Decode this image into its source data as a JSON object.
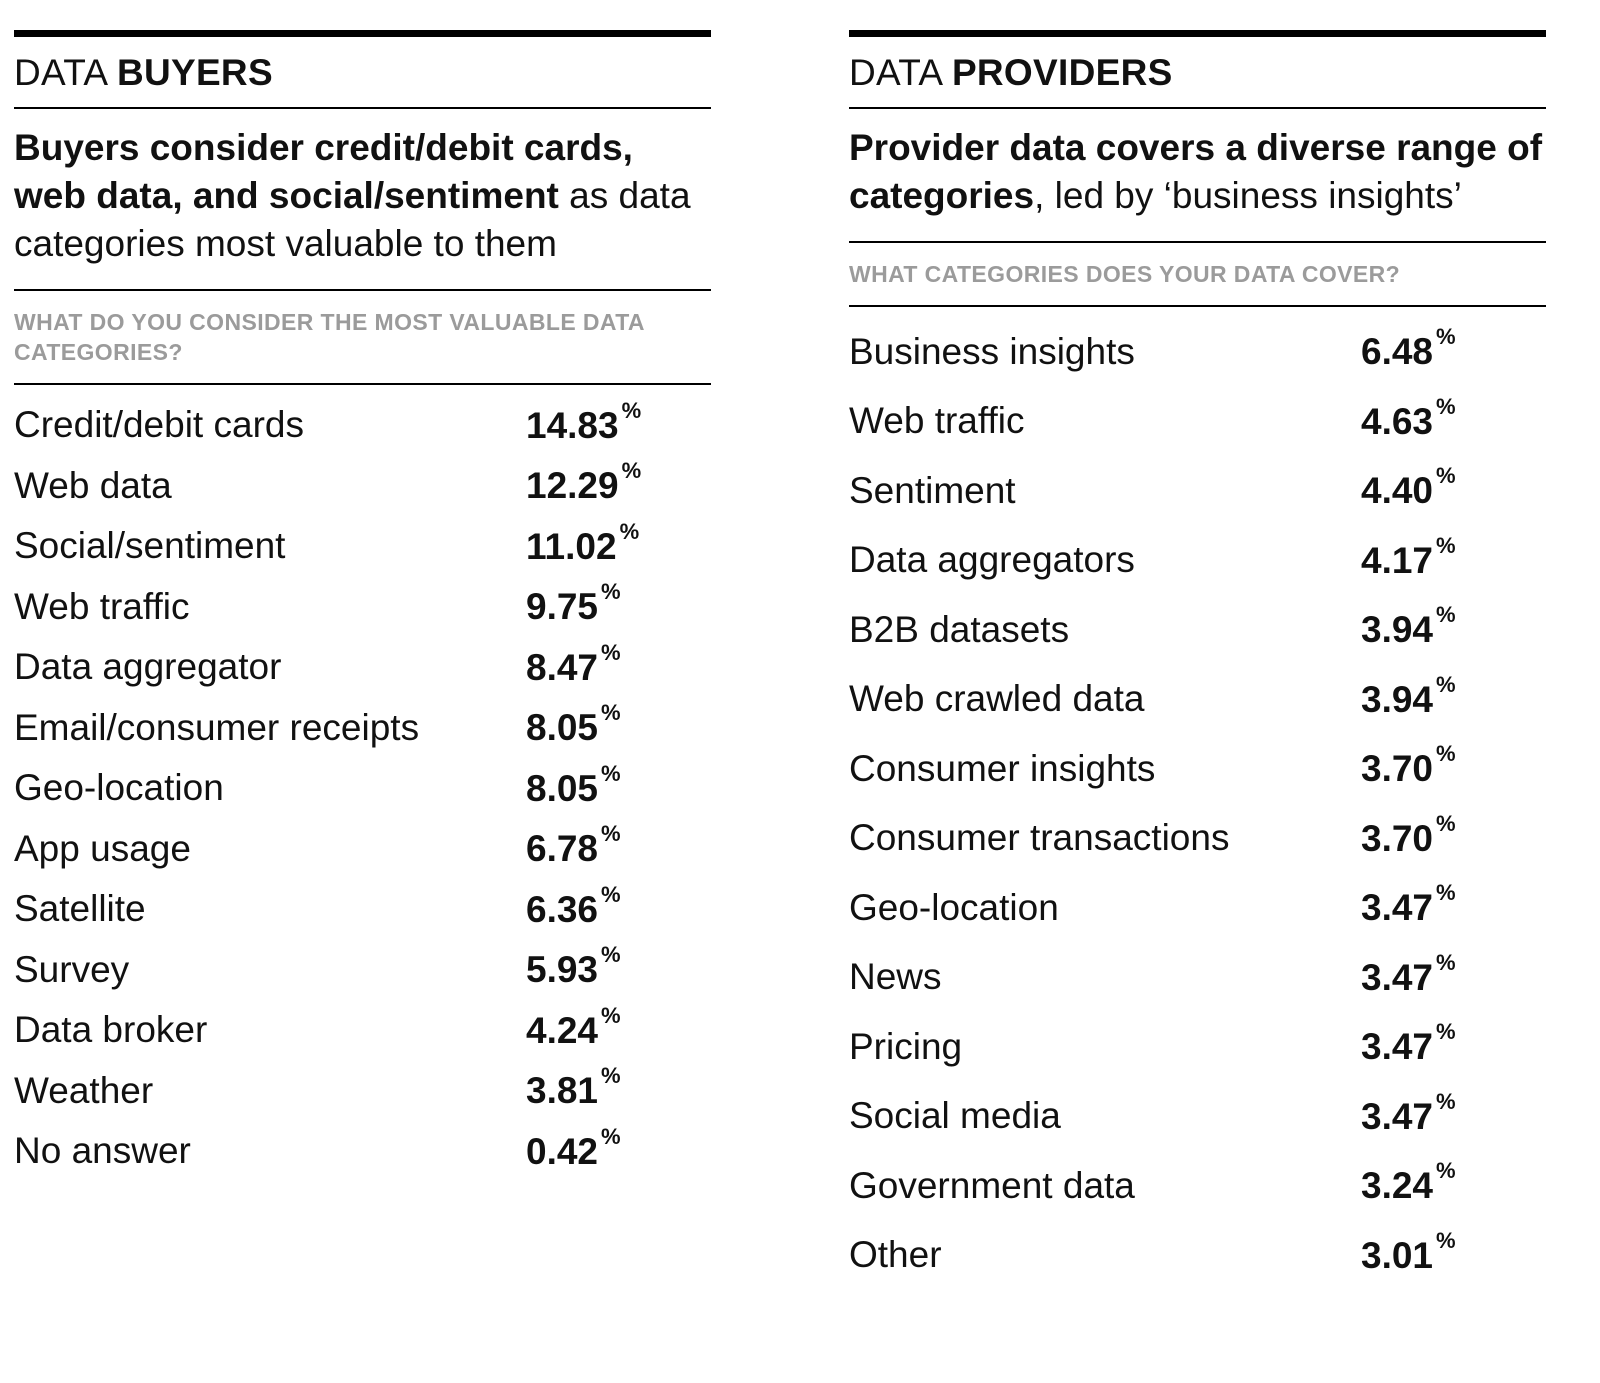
{
  "colors": {
    "text": "#111111",
    "question_label": "#9b9b9b",
    "rule": "#000000"
  },
  "buyers": {
    "kicker": {
      "light": "DATA ",
      "bold": "BUYERS"
    },
    "headline": {
      "bold": "Buyers consider credit/debit cards, web data, and social/sentiment",
      "regular": " as data categories most valuable to them"
    },
    "question": "WHAT DO YOU CONSIDER THE MOST VALUABLE DATA CATEGORIES?",
    "rows": [
      {
        "label": "Credit/debit cards",
        "value": "14.83",
        "unit": "%"
      },
      {
        "label": "Web data",
        "value": "12.29",
        "unit": "%"
      },
      {
        "label": "Social/sentiment",
        "value": "11.02",
        "unit": "%"
      },
      {
        "label": "Web traffic",
        "value": "9.75",
        "unit": "%"
      },
      {
        "label": "Data aggregator",
        "value": "8.47",
        "unit": "%"
      },
      {
        "label": "Email/consumer receipts",
        "value": "8.05",
        "unit": "%"
      },
      {
        "label": "Geo-location",
        "value": "8.05",
        "unit": "%"
      },
      {
        "label": "App usage",
        "value": "6.78",
        "unit": "%"
      },
      {
        "label": "Satellite",
        "value": "6.36",
        "unit": "%"
      },
      {
        "label": "Survey",
        "value": "5.93",
        "unit": "%"
      },
      {
        "label": "Data broker",
        "value": "4.24",
        "unit": "%"
      },
      {
        "label": "Weather",
        "value": "3.81",
        "unit": "%"
      },
      {
        "label": "No answer",
        "value": "0.42",
        "unit": "%"
      }
    ]
  },
  "providers": {
    "kicker": {
      "light": "DATA ",
      "bold": "PROVIDERS"
    },
    "headline": {
      "bold": "Provider data covers a diverse range of categories",
      "regular": ", led by ‘business insights’"
    },
    "question": "WHAT CATEGORIES DOES YOUR DATA COVER?",
    "rows": [
      {
        "label": "Business insights",
        "value": "6.48",
        "unit": "%"
      },
      {
        "label": "Web traffic",
        "value": "4.63",
        "unit": "%"
      },
      {
        "label": "Sentiment",
        "value": "4.40",
        "unit": "%"
      },
      {
        "label": "Data aggregators",
        "value": "4.17",
        "unit": "%"
      },
      {
        "label": "B2B datasets",
        "value": "3.94",
        "unit": "%"
      },
      {
        "label": "Web crawled data",
        "value": "3.94",
        "unit": "%"
      },
      {
        "label": "Consumer insights",
        "value": "3.70",
        "unit": "%"
      },
      {
        "label": "Consumer transactions",
        "value": "3.70",
        "unit": "%"
      },
      {
        "label": "Geo-location",
        "value": "3.47",
        "unit": "%"
      },
      {
        "label": "News",
        "value": "3.47",
        "unit": "%"
      },
      {
        "label": "Pricing",
        "value": "3.47",
        "unit": "%"
      },
      {
        "label": "Social media",
        "value": "3.47",
        "unit": "%"
      },
      {
        "label": "Government data",
        "value": "3.24",
        "unit": "%"
      },
      {
        "label": "Other",
        "value": "3.01",
        "unit": "%"
      }
    ]
  },
  "chart_data": [
    {
      "type": "table",
      "title": "DATA BUYERS — WHAT DO YOU CONSIDER THE MOST VALUABLE DATA CATEGORIES?",
      "categories": [
        "Credit/debit cards",
        "Web data",
        "Social/sentiment",
        "Web traffic",
        "Data aggregator",
        "Email/consumer receipts",
        "Geo-location",
        "App usage",
        "Satellite",
        "Survey",
        "Data broker",
        "Weather",
        "No answer"
      ],
      "values": [
        14.83,
        12.29,
        11.02,
        9.75,
        8.47,
        8.05,
        8.05,
        6.78,
        6.36,
        5.93,
        4.24,
        3.81,
        0.42
      ],
      "unit": "%"
    },
    {
      "type": "table",
      "title": "DATA PROVIDERS — WHAT CATEGORIES DOES YOUR DATA COVER?",
      "categories": [
        "Business insights",
        "Web traffic",
        "Sentiment",
        "Data aggregators",
        "B2B datasets",
        "Web crawled data",
        "Consumer insights",
        "Consumer transactions",
        "Geo-location",
        "News",
        "Pricing",
        "Social media",
        "Government data",
        "Other"
      ],
      "values": [
        6.48,
        4.63,
        4.4,
        4.17,
        3.94,
        3.94,
        3.7,
        3.7,
        3.47,
        3.47,
        3.47,
        3.47,
        3.24,
        3.01
      ],
      "unit": "%"
    }
  ]
}
